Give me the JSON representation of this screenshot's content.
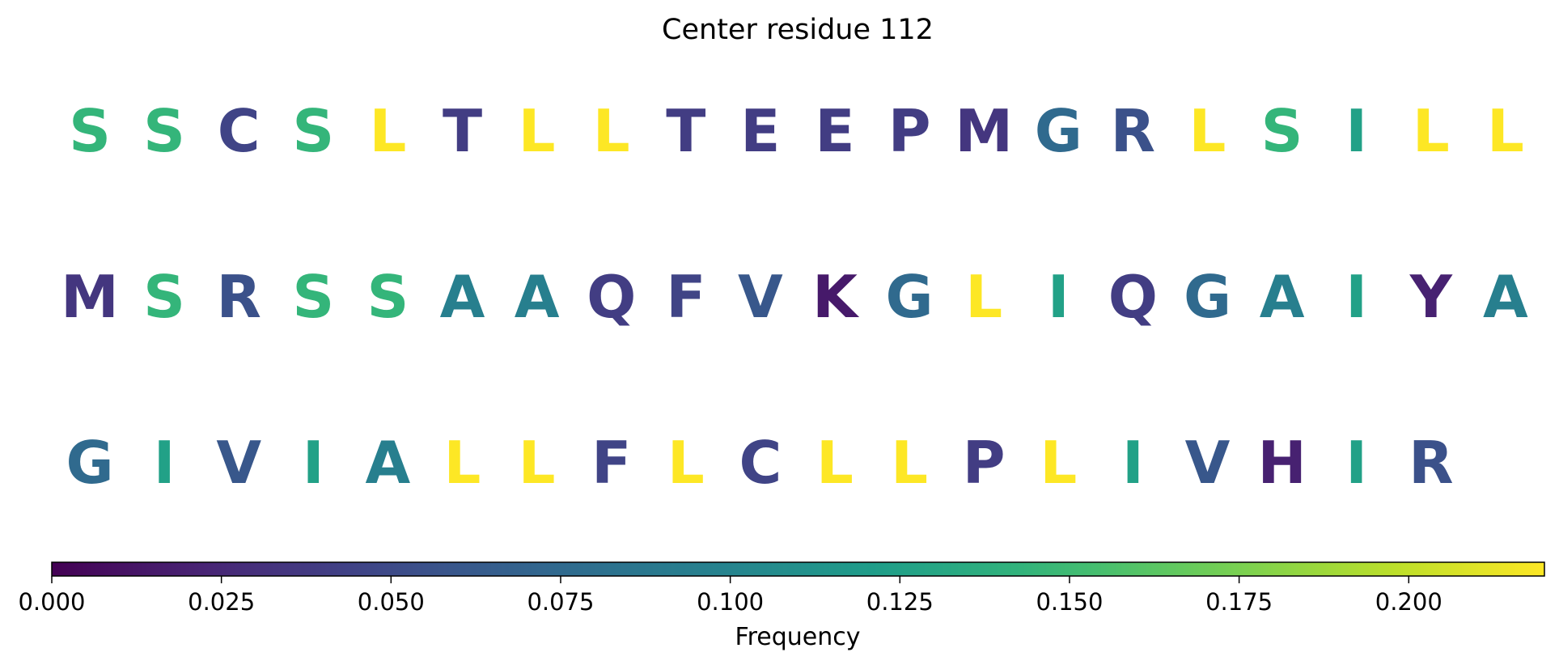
{
  "chart_data": {
    "type": "sequence-frequency",
    "title": "Center residue 112",
    "rows": [
      [
        {
          "residue": "S",
          "frequency": 0.145
        },
        {
          "residue": "S",
          "frequency": 0.145
        },
        {
          "residue": "C",
          "frequency": 0.045
        },
        {
          "residue": "S",
          "frequency": 0.145
        },
        {
          "residue": "L",
          "frequency": 0.22
        },
        {
          "residue": "T",
          "frequency": 0.04
        },
        {
          "residue": "L",
          "frequency": 0.22
        },
        {
          "residue": "L",
          "frequency": 0.22
        },
        {
          "residue": "T",
          "frequency": 0.04
        },
        {
          "residue": "E",
          "frequency": 0.04
        },
        {
          "residue": "E",
          "frequency": 0.04
        },
        {
          "residue": "P",
          "frequency": 0.04
        },
        {
          "residue": "M",
          "frequency": 0.035
        },
        {
          "residue": "G",
          "frequency": 0.075
        },
        {
          "residue": "R",
          "frequency": 0.055
        },
        {
          "residue": "L",
          "frequency": 0.22
        },
        {
          "residue": "S",
          "frequency": 0.145
        },
        {
          "residue": "I",
          "frequency": 0.125
        },
        {
          "residue": "L",
          "frequency": 0.22
        },
        {
          "residue": "L",
          "frequency": 0.22
        }
      ],
      [
        {
          "residue": "M",
          "frequency": 0.035
        },
        {
          "residue": "S",
          "frequency": 0.145
        },
        {
          "residue": "R",
          "frequency": 0.055
        },
        {
          "residue": "S",
          "frequency": 0.145
        },
        {
          "residue": "S",
          "frequency": 0.145
        },
        {
          "residue": "A",
          "frequency": 0.095
        },
        {
          "residue": "A",
          "frequency": 0.095
        },
        {
          "residue": "Q",
          "frequency": 0.04
        },
        {
          "residue": "F",
          "frequency": 0.045
        },
        {
          "residue": "V",
          "frequency": 0.06
        },
        {
          "residue": "K",
          "frequency": 0.015
        },
        {
          "residue": "G",
          "frequency": 0.075
        },
        {
          "residue": "L",
          "frequency": 0.22
        },
        {
          "residue": "I",
          "frequency": 0.125
        },
        {
          "residue": "Q",
          "frequency": 0.04
        },
        {
          "residue": "G",
          "frequency": 0.075
        },
        {
          "residue": "A",
          "frequency": 0.095
        },
        {
          "residue": "I",
          "frequency": 0.125
        },
        {
          "residue": "Y",
          "frequency": 0.02
        },
        {
          "residue": "A",
          "frequency": 0.095
        }
      ],
      [
        {
          "residue": "G",
          "frequency": 0.075
        },
        {
          "residue": "I",
          "frequency": 0.125
        },
        {
          "residue": "V",
          "frequency": 0.06
        },
        {
          "residue": "I",
          "frequency": 0.125
        },
        {
          "residue": "A",
          "frequency": 0.095
        },
        {
          "residue": "L",
          "frequency": 0.22
        },
        {
          "residue": "L",
          "frequency": 0.22
        },
        {
          "residue": "F",
          "frequency": 0.045
        },
        {
          "residue": "L",
          "frequency": 0.22
        },
        {
          "residue": "C",
          "frequency": 0.045
        },
        {
          "residue": "L",
          "frequency": 0.22
        },
        {
          "residue": "L",
          "frequency": 0.22
        },
        {
          "residue": "P",
          "frequency": 0.04
        },
        {
          "residue": "L",
          "frequency": 0.22
        },
        {
          "residue": "I",
          "frequency": 0.125
        },
        {
          "residue": "V",
          "frequency": 0.06
        },
        {
          "residue": "H",
          "frequency": 0.02
        },
        {
          "residue": "I",
          "frequency": 0.125
        },
        {
          "residue": "R",
          "frequency": 0.055
        }
      ]
    ],
    "colorbar": {
      "label": "Frequency",
      "colormap": "viridis",
      "range": [
        0,
        0.22
      ],
      "ticks": [
        0.0,
        0.025,
        0.05,
        0.075,
        0.1,
        0.125,
        0.15,
        0.175,
        0.2
      ],
      "tick_labels": [
        "0.000",
        "0.025",
        "0.050",
        "0.075",
        "0.100",
        "0.125",
        "0.150",
        "0.175",
        "0.200"
      ]
    }
  }
}
